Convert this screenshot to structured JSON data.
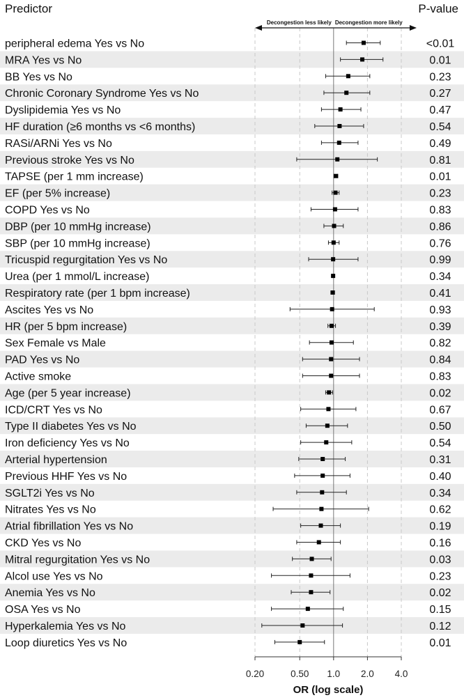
{
  "header": {
    "predictor_label": "Predictor",
    "pvalue_label": "P-value"
  },
  "direction": {
    "left": "Decongestion less likely",
    "right": "Decongestion more likely"
  },
  "chart_data": {
    "type": "forest",
    "xlabel": "OR (log scale)",
    "x_scale": "log",
    "xlim": [
      0.2,
      4.0
    ],
    "xticks": [
      0.2,
      0.5,
      1.0,
      2.0,
      4.0
    ],
    "xtick_labels": [
      "0.20",
      "0.50",
      "1.0",
      "2.0",
      "4.0"
    ],
    "reference_line": 1.0,
    "rows": [
      {
        "label": "peripheral edema Yes vs No",
        "or": 1.85,
        "lo": 1.3,
        "hi": 2.6,
        "p": "<0.01"
      },
      {
        "label": "MRA Yes vs No",
        "or": 1.8,
        "lo": 1.15,
        "hi": 2.75,
        "p": "0.01"
      },
      {
        "label": "BB Yes vs No",
        "or": 1.35,
        "lo": 0.85,
        "hi": 2.1,
        "p": "0.23"
      },
      {
        "label": "Chronic Coronary Syndrome Yes vs No",
        "or": 1.3,
        "lo": 0.82,
        "hi": 2.1,
        "p": "0.27"
      },
      {
        "label": "Dyslipidemia Yes vs No",
        "or": 1.15,
        "lo": 0.78,
        "hi": 1.75,
        "p": "0.47"
      },
      {
        "label": "HF duration (≥6 months vs <6 months)",
        "or": 1.13,
        "lo": 0.68,
        "hi": 1.85,
        "p": "0.54"
      },
      {
        "label": "RASi/ARNi Yes vs No",
        "or": 1.12,
        "lo": 0.78,
        "hi": 1.65,
        "p": "0.49"
      },
      {
        "label": "Previous stroke Yes vs No",
        "or": 1.08,
        "lo": 0.47,
        "hi": 2.45,
        "p": "0.81"
      },
      {
        "label": "TAPSE (per 1 mm increase)",
        "or": 1.05,
        "lo": 1.01,
        "hi": 1.09,
        "p": "0.01"
      },
      {
        "label": "EF (per 5% increase)",
        "or": 1.04,
        "lo": 0.97,
        "hi": 1.12,
        "p": "0.23"
      },
      {
        "label": "COPD Yes vs No",
        "or": 1.03,
        "lo": 0.63,
        "hi": 1.65,
        "p": "0.83"
      },
      {
        "label": "DBP (per 10 mmHg increase)",
        "or": 1.01,
        "lo": 0.82,
        "hi": 1.22,
        "p": "0.86"
      },
      {
        "label": "SBP (per 10 mmHg increase)",
        "or": 1.0,
        "lo": 0.9,
        "hi": 1.12,
        "p": "0.76"
      },
      {
        "label": "Tricuspid regurgitation Yes vs No",
        "or": 0.99,
        "lo": 0.6,
        "hi": 1.65,
        "p": "0.99"
      },
      {
        "label": "Urea (per 1 mmol/L increase)",
        "or": 0.99,
        "lo": 0.98,
        "hi": 1.0,
        "p": "0.34"
      },
      {
        "label": "Respiratory rate (per 1 bpm increase)",
        "or": 0.98,
        "lo": 0.95,
        "hi": 1.02,
        "p": "0.41"
      },
      {
        "label": "Ascites Yes vs No",
        "or": 0.97,
        "lo": 0.41,
        "hi": 2.3,
        "p": "0.93"
      },
      {
        "label": "HR (per 5 bpm increase)",
        "or": 0.96,
        "lo": 0.89,
        "hi": 1.04,
        "p": "0.39"
      },
      {
        "label": "Sex Female vs Male",
        "or": 0.96,
        "lo": 0.61,
        "hi": 1.5,
        "p": "0.82"
      },
      {
        "label": "PAD Yes vs No",
        "or": 0.95,
        "lo": 0.53,
        "hi": 1.7,
        "p": "0.84"
      },
      {
        "label": "Active smoke",
        "or": 0.95,
        "lo": 0.53,
        "hi": 1.7,
        "p": "0.83"
      },
      {
        "label": "Age (per 5 year increase)",
        "or": 0.91,
        "lo": 0.85,
        "hi": 0.98,
        "p": "0.02"
      },
      {
        "label": "ICD/CRT Yes vs No",
        "or": 0.9,
        "lo": 0.51,
        "hi": 1.58,
        "p": "0.67"
      },
      {
        "label": "Type II diabetes Yes vs No",
        "or": 0.88,
        "lo": 0.57,
        "hi": 1.33,
        "p": "0.50"
      },
      {
        "label": "Iron deficiency Yes vs No",
        "or": 0.86,
        "lo": 0.51,
        "hi": 1.45,
        "p": "0.54"
      },
      {
        "label": "Arterial hypertension",
        "or": 0.8,
        "lo": 0.49,
        "hi": 1.27,
        "p": "0.31"
      },
      {
        "label": "Previous HHF Yes vs No",
        "or": 0.8,
        "lo": 0.45,
        "hi": 1.4,
        "p": "0.40"
      },
      {
        "label": "SGLT2i Yes vs No",
        "or": 0.79,
        "lo": 0.47,
        "hi": 1.3,
        "p": "0.34"
      },
      {
        "label": "Nitrates Yes vs No",
        "or": 0.78,
        "lo": 0.29,
        "hi": 2.05,
        "p": "0.62"
      },
      {
        "label": "Atrial fibrillation Yes vs No",
        "or": 0.77,
        "lo": 0.51,
        "hi": 1.15,
        "p": "0.19"
      },
      {
        "label": "CKD Yes vs No",
        "or": 0.74,
        "lo": 0.47,
        "hi": 1.15,
        "p": "0.16"
      },
      {
        "label": "Mitral regurgitation Yes vs No",
        "or": 0.64,
        "lo": 0.43,
        "hi": 0.95,
        "p": "0.03"
      },
      {
        "label": "Alcol use Yes vs No",
        "or": 0.63,
        "lo": 0.28,
        "hi": 1.4,
        "p": "0.23"
      },
      {
        "label": "Anemia Yes vs No",
        "or": 0.63,
        "lo": 0.42,
        "hi": 0.93,
        "p": "0.02"
      },
      {
        "label": "OSA Yes vs No",
        "or": 0.59,
        "lo": 0.28,
        "hi": 1.22,
        "p": "0.15"
      },
      {
        "label": "Hyperkalemia Yes vs No",
        "or": 0.53,
        "lo": 0.23,
        "hi": 1.2,
        "p": "0.12"
      },
      {
        "label": "Loop diuretics Yes vs No",
        "or": 0.5,
        "lo": 0.3,
        "hi": 0.83,
        "p": "0.01"
      }
    ]
  }
}
